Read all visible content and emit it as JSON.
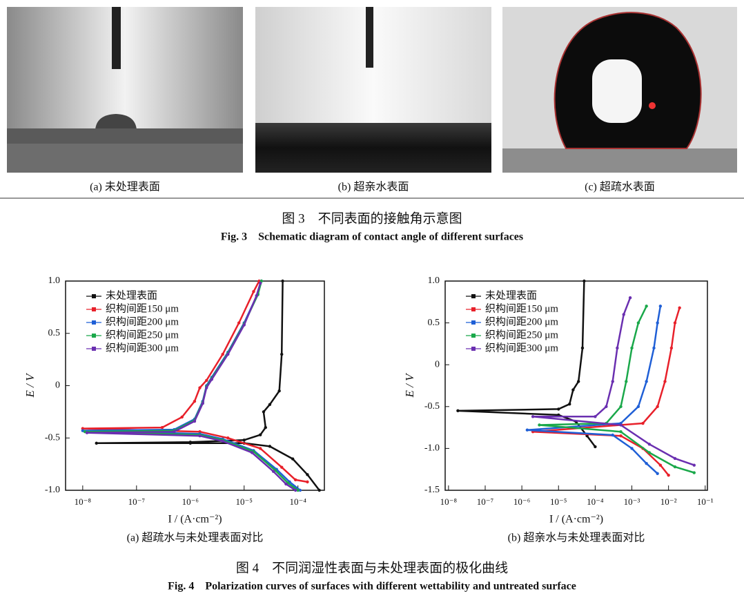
{
  "figure3": {
    "panels": [
      {
        "caption": "(a) 未处理表面"
      },
      {
        "caption": "(b) 超亲水表面"
      },
      {
        "caption": "(c) 超疏水表面"
      }
    ],
    "title_cn": "图 3　不同表面的接触角示意图",
    "title_en": "Fig. 3　Schematic diagram of contact angle of different surfaces"
  },
  "chart_data": [
    {
      "type": "line",
      "caption": "(a) 超疏水与未处理表面对比",
      "x_label": "I / (A·cm⁻²)",
      "y_label": "E / V",
      "xscale": "log",
      "xlim": [
        4.8e-09,
        0.00031
      ],
      "ylim": [
        -1.0,
        1.0
      ],
      "xticks": [
        {
          "value": 1e-08,
          "label": "10⁻⁸"
        },
        {
          "value": 1e-07,
          "label": "10⁻⁷"
        },
        {
          "value": 1e-06,
          "label": "10⁻⁶"
        },
        {
          "value": 1e-05,
          "label": "10⁻⁵"
        },
        {
          "value": 0.0001,
          "label": "10⁻⁴"
        }
      ],
      "yticks": [
        {
          "value": -1.0,
          "label": "-1.0"
        },
        -0.5,
        0,
        0.5,
        {
          "value": 1.0,
          "label": "1.0"
        }
      ],
      "legend": "upper left",
      "series": [
        {
          "name": "未处理表面",
          "color": "#111111",
          "x": [
            0.00025,
            0.00015,
            8e-05,
            3e-05,
            1e-05,
            1e-06,
            1.8e-08,
            1e-06,
            1e-05,
            2e-05,
            2.5e-05,
            2.3e-05,
            3e-05,
            4.5e-05,
            5e-05,
            5.2e-05
          ],
          "values": [
            -1.0,
            -0.85,
            -0.7,
            -0.58,
            -0.55,
            -0.55,
            -0.55,
            -0.54,
            -0.52,
            -0.47,
            -0.4,
            -0.25,
            -0.18,
            -0.05,
            0.3,
            1.0
          ]
        },
        {
          "name": "织构间距150 μm",
          "color": "#e8202a",
          "x": [
            0.00015,
            9e-05,
            5e-05,
            2e-05,
            5e-06,
            1.5e-06,
            1e-08,
            3e-07,
            7e-07,
            1.2e-06,
            1.5e-06,
            2e-06,
            4e-06,
            8e-06,
            1.5e-05,
            1.9e-05
          ],
          "values": [
            -0.92,
            -0.9,
            -0.78,
            -0.6,
            -0.5,
            -0.44,
            -0.41,
            -0.4,
            -0.3,
            -0.15,
            -0.02,
            0.05,
            0.3,
            0.6,
            0.9,
            1.0
          ]
        },
        {
          "name": "织构间距200 μm",
          "color": "#1f5fd6",
          "x": [
            0.00011,
            7e-05,
            4e-05,
            1.5e-05,
            4e-06,
            1.5e-06,
            1e-08,
            5e-07,
            1.2e-06,
            1.7e-06,
            2e-06,
            2.5e-06,
            5e-06,
            1e-05,
            1.8e-05,
            2.1e-05
          ],
          "values": [
            -1.0,
            -0.92,
            -0.8,
            -0.62,
            -0.51,
            -0.46,
            -0.43,
            -0.42,
            -0.32,
            -0.15,
            0.0,
            0.08,
            0.32,
            0.6,
            0.88,
            1.0
          ]
        },
        {
          "name": "织构间距250 μm",
          "color": "#1aa84a",
          "x": [
            0.0001,
            6.5e-05,
            3.8e-05,
            1.5e-05,
            4e-06,
            1.5e-06,
            1.1e-08,
            5e-07,
            1.2e-06,
            1.7e-06,
            2e-06,
            2.5e-06,
            5e-06,
            1e-05,
            1.8e-05,
            2.1e-05
          ],
          "values": [
            -1.0,
            -0.93,
            -0.81,
            -0.63,
            -0.52,
            -0.47,
            -0.44,
            -0.43,
            -0.33,
            -0.16,
            -0.01,
            0.07,
            0.31,
            0.59,
            0.87,
            1.0
          ]
        },
        {
          "name": "织构间距300 μm",
          "color": "#6a2fb0",
          "x": [
            9e-05,
            6e-05,
            3.5e-05,
            1.4e-05,
            4e-06,
            1.5e-06,
            1.2e-08,
            5e-07,
            1.2e-06,
            1.7e-06,
            2e-06,
            2.5e-06,
            5e-06,
            1e-05,
            1.7e-05,
            2e-05
          ],
          "values": [
            -1.0,
            -0.94,
            -0.82,
            -0.64,
            -0.53,
            -0.48,
            -0.45,
            -0.44,
            -0.34,
            -0.17,
            -0.02,
            0.06,
            0.3,
            0.58,
            0.86,
            0.98
          ]
        }
      ]
    },
    {
      "type": "line",
      "caption": "(b) 超亲水与未处理表面对比",
      "x_label": "I / (A·cm⁻²)",
      "y_label": "E / V",
      "xscale": "log",
      "xlim": [
        8.1e-09,
        0.115
      ],
      "ylim": [
        -1.5,
        1.0
      ],
      "xticks": [
        {
          "value": 1e-08,
          "label": "10⁻⁸"
        },
        {
          "value": 1e-07,
          "label": "10⁻⁷"
        },
        {
          "value": 1e-06,
          "label": "10⁻⁶"
        },
        {
          "value": 1e-05,
          "label": "10⁻⁵"
        },
        {
          "value": 0.0001,
          "label": "10⁻⁴"
        },
        {
          "value": 0.001,
          "label": "10⁻³"
        },
        {
          "value": 0.01,
          "label": "10⁻²"
        },
        {
          "value": 0.1,
          "label": "10⁻¹"
        }
      ],
      "yticks": [
        {
          "value": -1.5,
          "label": "-1.5"
        },
        {
          "value": -1.0,
          "label": "-1.0"
        },
        -0.5,
        0,
        0.5,
        {
          "value": 1.0,
          "label": "1.0"
        }
      ],
      "legend": "upper left",
      "series": [
        {
          "name": "未处理表面",
          "color": "#111111",
          "x": [
            0.0001,
            6e-05,
            3e-05,
            1e-05,
            1.8e-08,
            1e-05,
            2e-05,
            2.5e-05,
            3.5e-05,
            4.5e-05,
            5e-05
          ],
          "values": [
            -0.98,
            -0.85,
            -0.68,
            -0.6,
            -0.55,
            -0.53,
            -0.47,
            -0.3,
            -0.2,
            0.2,
            1.0
          ]
        },
        {
          "name": "织构间距150 μm",
          "color": "#e8202a",
          "x": [
            0.01,
            0.006,
            0.002,
            0.0005,
            2e-06,
            0.002,
            0.005,
            0.008,
            0.012,
            0.015,
            0.02
          ],
          "values": [
            -1.32,
            -1.2,
            -1.0,
            -0.85,
            -0.8,
            -0.7,
            -0.5,
            -0.2,
            0.2,
            0.5,
            0.68
          ]
        },
        {
          "name": "织构间距200 μm",
          "color": "#1f5fd6",
          "x": [
            0.005,
            0.0025,
            0.001,
            0.0003,
            1.4e-06,
            0.0005,
            0.0015,
            0.0025,
            0.004,
            0.005,
            0.006
          ],
          "values": [
            -1.3,
            -1.18,
            -1.0,
            -0.84,
            -0.78,
            -0.7,
            -0.5,
            -0.2,
            0.2,
            0.5,
            0.7
          ]
        },
        {
          "name": "织构间距250 μm",
          "color": "#1aa84a",
          "x": [
            0.05,
            0.015,
            0.003,
            0.0005,
            3e-06,
            0.0002,
            0.0005,
            0.0007,
            0.001,
            0.0015,
            0.0025
          ],
          "values": [
            -1.29,
            -1.22,
            -1.05,
            -0.8,
            -0.72,
            -0.7,
            -0.5,
            -0.2,
            0.2,
            0.5,
            0.7
          ]
        },
        {
          "name": "织构间距300 μm",
          "color": "#6a2fb0",
          "x": [
            0.05,
            0.015,
            0.003,
            0.0005,
            2e-06,
            0.0001,
            0.0002,
            0.0003,
            0.0004,
            0.0006,
            0.0009
          ],
          "values": [
            -1.2,
            -1.12,
            -0.95,
            -0.72,
            -0.62,
            -0.62,
            -0.5,
            -0.2,
            0.2,
            0.6,
            0.8
          ]
        }
      ]
    }
  ],
  "figure4": {
    "title_cn": "图 4　不同润湿性表面与未处理表面的极化曲线",
    "title_en": "Fig. 4　Polarization curves of surfaces with different wettability and untreated surface"
  }
}
